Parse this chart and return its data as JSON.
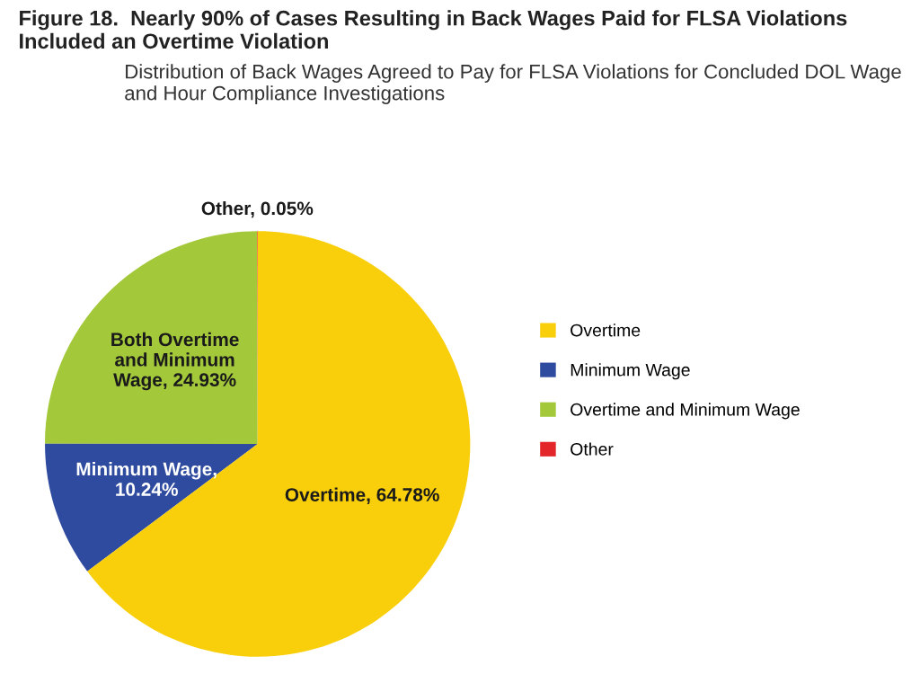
{
  "chart_data": {
    "type": "pie",
    "title": "Figure 18.  Nearly 90% of Cases Resulting in Back Wages Paid for FLSA Violations\nIncluded an Overtime Violation",
    "subtitle": "Distribution of Back Wages Agreed to Pay for FLSA Violations for Concluded DOL Wage\nand Hour Compliance Investigations",
    "categories": [
      "Overtime",
      "Minimum Wage",
      "Overtime and Minimum Wage",
      "Other"
    ],
    "values": [
      64.78,
      10.24,
      24.93,
      0.05
    ],
    "value_labels": [
      "Overtime, 64.78%",
      "Minimum Wage,\n10.24%",
      "Both Overtime\nand Minimum\nWage, 24.93%",
      "Other, 0.05%"
    ],
    "colors": [
      "#f9cf0b",
      "#2f4b9f",
      "#a3c83a",
      "#e3262a"
    ],
    "legend": "right"
  }
}
